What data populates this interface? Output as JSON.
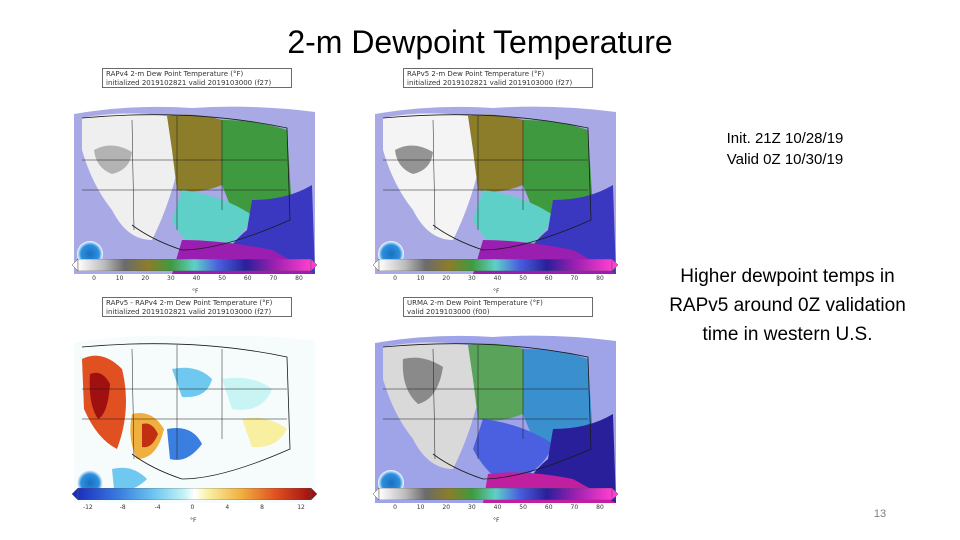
{
  "title": "2-m Dewpoint Temperature",
  "panels": [
    {
      "id": "rapv4",
      "header_line1": "RAPv4 2-m Dew Point Temperature (°F)",
      "header_line2": "initialized 2019102821 valid 2019103000 (f27)",
      "colorbar_ticks": [
        "0",
        "10",
        "20",
        "30",
        "40",
        "50",
        "60",
        "70",
        "80"
      ],
      "unit": "°F",
      "logo": "noaa-logo"
    },
    {
      "id": "rapv5",
      "header_line1": "RAPv5 2-m Dew Point Temperature (°F)",
      "header_line2": "initialized 2019102821 valid 2019103000 (f27)",
      "colorbar_ticks": [
        "0",
        "10",
        "20",
        "30",
        "40",
        "50",
        "60",
        "70",
        "80"
      ],
      "unit": "°F",
      "logo": "noaa-logo"
    },
    {
      "id": "diff",
      "header_line1": "RAPv5 - RAPv4 2-m Dew Point Temperature (°F)",
      "header_line2": "initialized 2019102821 valid 2019103000 (f27)",
      "colorbar_ticks": [
        "-12",
        "-8",
        "-4",
        "0",
        "4",
        "8",
        "12"
      ],
      "unit": "°F",
      "logo": "noaa-logo"
    },
    {
      "id": "urma",
      "header_line1": "URMA 2-m Dew Point Temperature (°F)",
      "header_line2": "valid 2019103000 (f00)",
      "colorbar_ticks": [
        "0",
        "10",
        "20",
        "30",
        "40",
        "50",
        "60",
        "70",
        "80"
      ],
      "unit": "°F",
      "logo": "noaa-logo"
    }
  ],
  "info": {
    "init": "Init. 21Z 10/28/19",
    "valid": "Valid 0Z 10/30/19"
  },
  "conclusion": {
    "line1": "Higher dewpoint temps in",
    "line2": "RAPv5 around 0Z validation",
    "line3": "time in western U.S."
  },
  "page_number": "13"
}
